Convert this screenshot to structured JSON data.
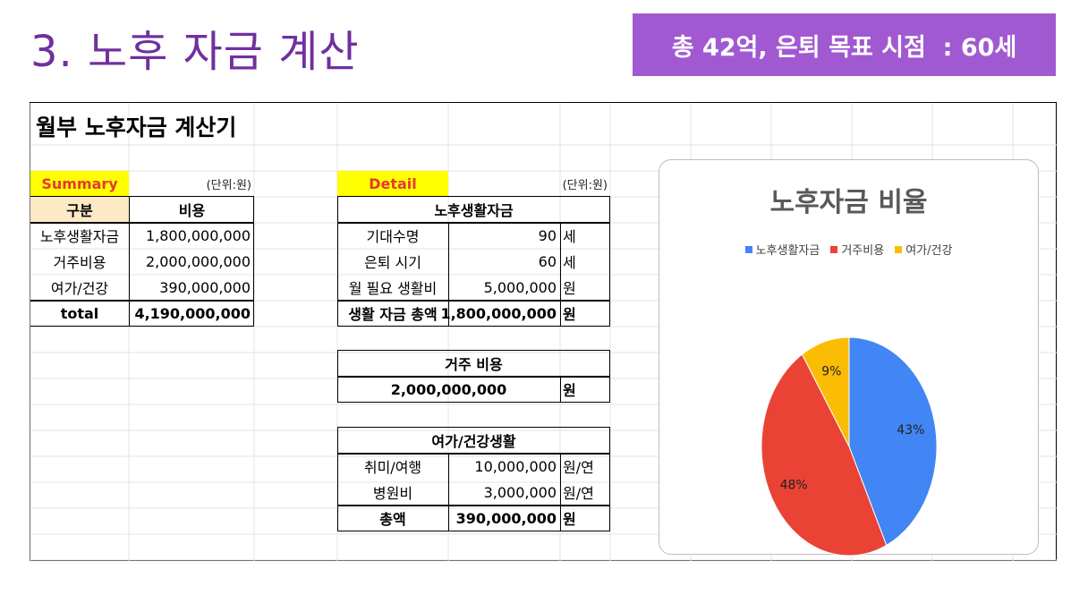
{
  "slide": {
    "title": "3. 노후 자금 계산",
    "target": "총 42억, 은퇴 목표 시점  : 60세"
  },
  "sheet": {
    "title": "월부 노후자금 계산기",
    "summary": {
      "tag": "Summary",
      "unit": "(단위:원)",
      "header": [
        "구분",
        "비용"
      ],
      "rows": [
        {
          "label": "노후생활자금",
          "value": "1,800,000,000"
        },
        {
          "label": "거주비용",
          "value": "2,000,000,000"
        },
        {
          "label": "여가/건강",
          "value": "390,000,000"
        }
      ],
      "total": {
        "label": "total",
        "value": "4,190,000,000"
      }
    },
    "detail": {
      "tag": "Detail",
      "unit": "(단위:원)",
      "living": {
        "header": "노후생활자금",
        "rows": [
          {
            "label": "기대수명",
            "value": "90",
            "unit": "세"
          },
          {
            "label": "은퇴 시기",
            "value": "60",
            "unit": "세"
          },
          {
            "label": "월 필요 생활비",
            "value": "5,000,000",
            "unit": "원"
          }
        ],
        "total": {
          "label": "생활 자금 총액",
          "value": "1,800,000,000",
          "unit": "원"
        }
      },
      "housing": {
        "header": "거주 비용",
        "value": "2,000,000,000",
        "unit": "원"
      },
      "leisure": {
        "header": "여가/건강생활",
        "rows": [
          {
            "label": "취미/여행",
            "value": "10,000,000",
            "unit": "원/연"
          },
          {
            "label": "병원비",
            "value": "3,000,000",
            "unit": "원/연"
          }
        ],
        "total": {
          "label": "총액",
          "value": "390,000,000",
          "unit": "원"
        }
      }
    }
  },
  "chart_data": {
    "type": "pie",
    "title": "노후자금 비율",
    "legend_position": "top",
    "categories": [
      "노후생활자금",
      "거주비용",
      "여가/건강"
    ],
    "values": [
      43,
      48,
      9
    ],
    "labels": [
      "43%",
      "48%",
      "9%"
    ],
    "colors": [
      "#4285f4",
      "#ea4335",
      "#fbbc04"
    ]
  }
}
